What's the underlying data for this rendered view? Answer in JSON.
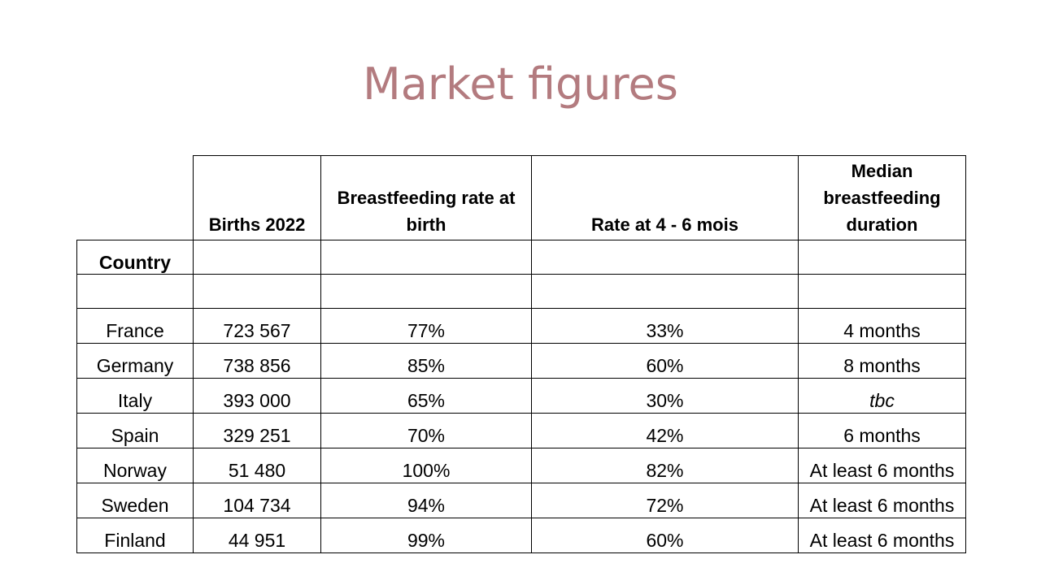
{
  "slide": {
    "title": "Market figures"
  },
  "table": {
    "headers": {
      "births": "Births 2022",
      "rate_birth": "Breastfeeding rate at birth",
      "rate_4_6": "Rate at 4 - 6 mois",
      "median": "Median breastfeeding duration"
    },
    "country_label": "Country",
    "rows": [
      {
        "country": "France",
        "births": "723 567",
        "rate_birth": "77%",
        "rate_4_6": "33%",
        "median": "4 months"
      },
      {
        "country": "Germany",
        "births": "738 856",
        "rate_birth": "85%",
        "rate_4_6": "60%",
        "median": "8 months"
      },
      {
        "country": "Italy",
        "births": "393 000",
        "rate_birth": "65%",
        "rate_4_6": "30%",
        "median": "tbc"
      },
      {
        "country": "Spain",
        "births": "329 251",
        "rate_birth": "70%",
        "rate_4_6": "42%",
        "median": "6 months"
      },
      {
        "country": "Norway",
        "births": "51 480",
        "rate_birth": "100%",
        "rate_4_6": "82%",
        "median": "At least 6 months"
      },
      {
        "country": "Sweden",
        "births": "104 734",
        "rate_birth": "94%",
        "rate_4_6": "72%",
        "median": "At least 6 months"
      },
      {
        "country": "Finland",
        "births": "44 951",
        "rate_birth": "99%",
        "rate_4_6": "60%",
        "median": "At least 6 months"
      }
    ]
  }
}
